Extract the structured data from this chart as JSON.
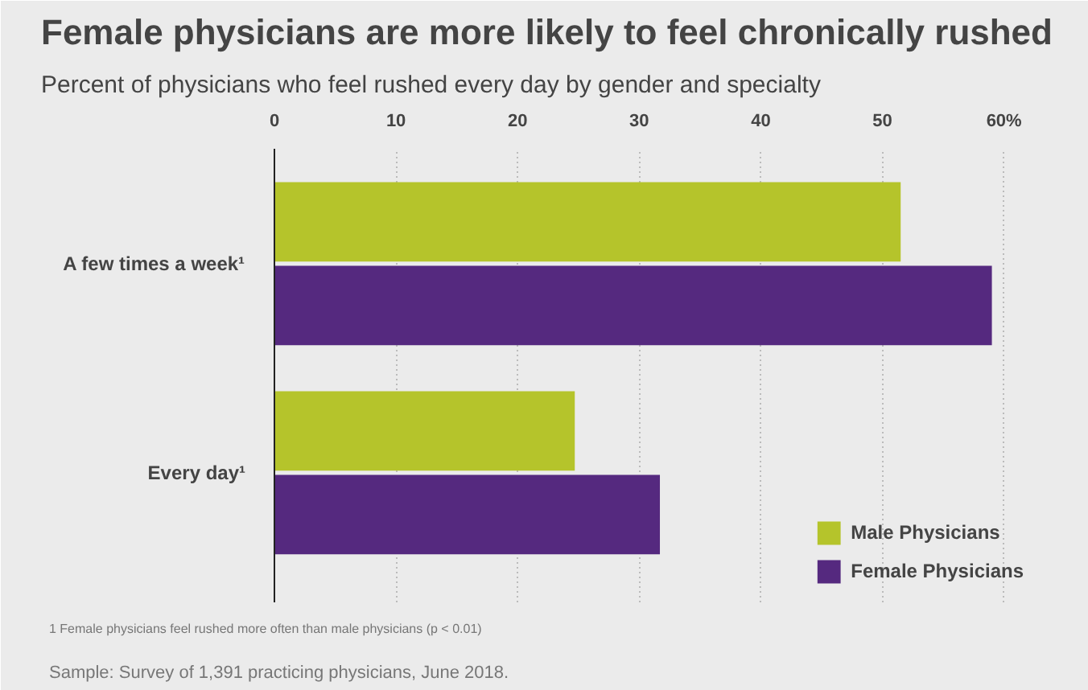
{
  "chart_data": {
    "type": "bar",
    "orientation": "horizontal",
    "title": "Female physicians are more likely to feel chronically rushed",
    "subtitle": "Percent of physicians who feel rushed every day by gender and specialty",
    "categories": [
      "A few times a week¹",
      "Every day¹"
    ],
    "series": [
      {
        "name": "Male Physicians",
        "color": "#b5c42b",
        "values": [
          51.5,
          24.7
        ]
      },
      {
        "name": "Female Physicians",
        "color": "#55297f",
        "values": [
          59,
          31.7
        ]
      }
    ],
    "xlim": [
      0,
      63
    ],
    "xticks": [
      0,
      10,
      20,
      30,
      40,
      50,
      {
        "value": 60,
        "label": "60%"
      }
    ],
    "grid": "x",
    "legend": "bottom right",
    "annotations": [
      "1 Female physicians feel rushed more often than male physicians (p < 0.01)",
      "Sample: Survey of 1,391 practicing physicians, June 2018."
    ]
  }
}
